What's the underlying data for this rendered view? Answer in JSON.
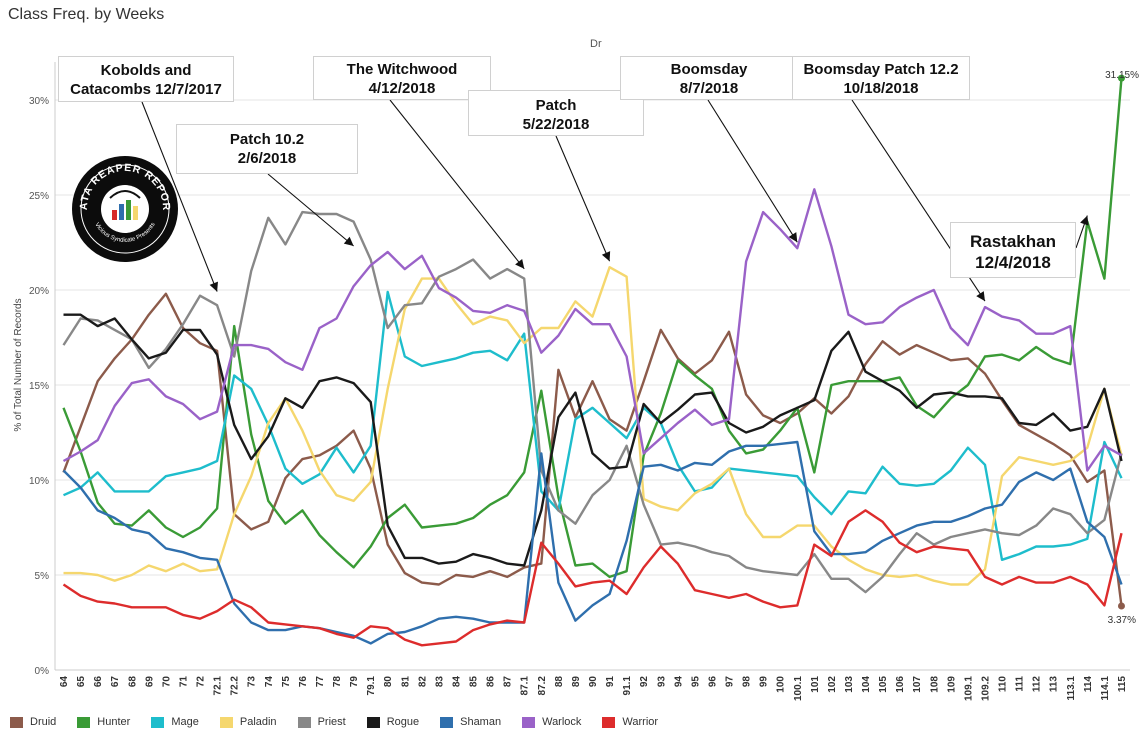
{
  "title": "Class Freq. by Weeks",
  "column_header": "Dr",
  "chart_data": {
    "type": "line",
    "ylabel": "% of Total Number of Records",
    "ylim": [
      0,
      32
    ],
    "yticks": [
      0,
      5,
      10,
      15,
      20,
      25,
      30
    ],
    "ytick_labels": [
      "0%",
      "5%",
      "10%",
      "15%",
      "20%",
      "25%",
      "30%"
    ],
    "grid": true,
    "x": [
      "64",
      "65",
      "66",
      "67",
      "68",
      "69",
      "70",
      "71",
      "72",
      "72.1",
      "72.2",
      "73",
      "74",
      "75",
      "76",
      "77",
      "78",
      "79",
      "79.1",
      "80",
      "81",
      "82",
      "83",
      "84",
      "85",
      "86",
      "87",
      "87.1",
      "87.2",
      "88",
      "89",
      "90",
      "91",
      "91.1",
      "92",
      "93",
      "94",
      "95",
      "96",
      "97",
      "98",
      "99",
      "100",
      "100.1",
      "101",
      "102",
      "103",
      "104",
      "105",
      "106",
      "107",
      "108",
      "109",
      "109.1",
      "109.2",
      "110",
      "111",
      "112",
      "113",
      "113.1",
      "114",
      "114.1",
      "115"
    ],
    "series": [
      {
        "name": "Druid",
        "color": "#8c5b4b",
        "values": [
          10.4,
          12.8,
          15.2,
          16.4,
          17.4,
          18.7,
          19.8,
          18.0,
          17.2,
          16.8,
          8.2,
          7.4,
          7.8,
          10.1,
          11.1,
          11.3,
          11.8,
          12.6,
          10.6,
          6.6,
          5.1,
          4.6,
          4.5,
          5.0,
          4.9,
          5.2,
          4.9,
          5.4,
          5.6,
          15.8,
          13.3,
          15.2,
          13.2,
          12.6,
          15.2,
          17.9,
          16.4,
          15.6,
          16.3,
          17.8,
          14.5,
          13.4,
          13.0,
          13.5,
          14.3,
          13.5,
          14.4,
          16.1,
          17.3,
          16.6,
          17.1,
          16.7,
          16.3,
          16.4,
          15.6,
          14.2,
          12.9,
          12.4,
          11.9,
          11.3,
          9.9,
          10.5,
          3.37
        ]
      },
      {
        "name": "Hunter",
        "color": "#3a9b36",
        "values": [
          13.8,
          11.5,
          8.8,
          7.7,
          7.6,
          8.4,
          7.5,
          7.0,
          7.5,
          8.5,
          18.1,
          12.4,
          8.9,
          7.7,
          8.4,
          7.1,
          6.2,
          5.4,
          6.5,
          8.0,
          8.7,
          7.5,
          7.6,
          7.7,
          8.0,
          8.7,
          9.2,
          10.4,
          14.7,
          9.1,
          5.5,
          5.6,
          4.9,
          5.2,
          11.3,
          13.5,
          16.3,
          15.5,
          14.8,
          12.6,
          11.4,
          11.6,
          12.6,
          13.8,
          10.4,
          15.0,
          15.2,
          15.2,
          15.2,
          15.4,
          13.9,
          13.3,
          14.3,
          15.0,
          16.5,
          16.6,
          16.3,
          17.0,
          16.4,
          16.1,
          23.6,
          20.6,
          31.15
        ]
      },
      {
        "name": "Mage",
        "color": "#1ebdcc",
        "values": [
          9.2,
          9.6,
          10.4,
          9.4,
          9.4,
          9.4,
          10.2,
          10.4,
          10.6,
          11.0,
          15.5,
          14.8,
          12.9,
          10.6,
          9.8,
          10.3,
          11.7,
          10.4,
          11.8,
          19.9,
          16.5,
          16.0,
          16.2,
          16.4,
          16.7,
          16.8,
          16.3,
          17.7,
          9.4,
          8.4,
          13.2,
          13.8,
          13.0,
          12.2,
          13.8,
          13.0,
          10.8,
          9.4,
          9.6,
          10.6,
          10.5,
          10.4,
          10.3,
          10.2,
          9.1,
          8.2,
          9.4,
          9.3,
          10.7,
          9.8,
          9.7,
          9.8,
          10.5,
          11.7,
          10.8,
          5.8,
          6.1,
          6.5,
          6.5,
          6.6,
          6.9,
          12.0,
          10.1
        ]
      },
      {
        "name": "Paladin",
        "color": "#f5d76e",
        "values": [
          5.1,
          5.1,
          5.0,
          4.7,
          5.0,
          5.5,
          5.2,
          5.6,
          5.2,
          5.3,
          8.2,
          10.2,
          13.0,
          14.3,
          12.6,
          10.5,
          9.2,
          8.9,
          9.9,
          14.8,
          19.0,
          20.6,
          20.6,
          19.3,
          18.2,
          18.6,
          18.4,
          17.2,
          18.0,
          18.0,
          19.4,
          18.6,
          21.2,
          20.7,
          9.0,
          8.6,
          8.4,
          9.3,
          9.8,
          10.6,
          8.2,
          7.0,
          7.0,
          7.6,
          7.6,
          6.5,
          5.8,
          5.3,
          5.0,
          4.9,
          5.0,
          4.7,
          4.5,
          4.5,
          5.3,
          10.2,
          11.2,
          11.0,
          10.8,
          11.0,
          11.7,
          14.8,
          11.3
        ]
      },
      {
        "name": "Priest",
        "color": "#888888",
        "values": [
          17.1,
          18.5,
          18.4,
          17.9,
          17.4,
          15.9,
          16.9,
          18.2,
          19.7,
          19.2,
          16.5,
          21.0,
          23.8,
          22.4,
          24.1,
          24.0,
          24.0,
          23.6,
          21.6,
          18.0,
          19.2,
          19.3,
          20.7,
          21.1,
          21.6,
          20.6,
          21.1,
          20.6,
          10.5,
          8.4,
          7.7,
          9.2,
          10.0,
          11.8,
          8.7,
          6.6,
          6.7,
          6.5,
          6.2,
          6.0,
          5.4,
          5.2,
          5.1,
          5.0,
          6.1,
          4.8,
          4.8,
          4.1,
          4.9,
          6.1,
          7.2,
          6.6,
          7.0,
          7.2,
          7.4,
          7.2,
          7.1,
          7.6,
          8.5,
          8.2,
          7.2,
          7.9,
          11.4
        ]
      },
      {
        "name": "Rogue",
        "color": "#1a1a1a",
        "values": [
          18.7,
          18.7,
          18.1,
          18.5,
          17.4,
          16.4,
          16.7,
          17.9,
          17.9,
          16.6,
          12.9,
          11.1,
          12.3,
          14.3,
          13.8,
          15.2,
          15.4,
          15.1,
          14.1,
          7.6,
          5.9,
          5.9,
          5.6,
          5.7,
          6.1,
          5.9,
          5.6,
          5.5,
          8.4,
          13.3,
          14.6,
          11.4,
          10.6,
          10.7,
          14.0,
          13.0,
          13.7,
          14.5,
          14.6,
          13.0,
          12.5,
          12.8,
          13.4,
          13.8,
          14.2,
          16.8,
          17.8,
          15.7,
          15.2,
          14.7,
          13.8,
          14.5,
          14.6,
          14.4,
          14.4,
          14.3,
          13.0,
          12.9,
          13.5,
          12.6,
          12.8,
          14.8,
          11.0
        ]
      },
      {
        "name": "Shaman",
        "color": "#2f6fad",
        "values": [
          10.5,
          9.6,
          8.4,
          8.0,
          7.4,
          7.2,
          6.4,
          6.2,
          5.9,
          5.8,
          3.5,
          2.5,
          2.1,
          2.1,
          2.3,
          2.2,
          2.0,
          1.8,
          1.4,
          1.9,
          2.0,
          2.3,
          2.7,
          2.8,
          2.7,
          2.5,
          2.5,
          2.5,
          11.4,
          4.6,
          2.6,
          3.4,
          4.0,
          6.8,
          10.7,
          10.8,
          10.5,
          10.9,
          10.8,
          11.5,
          11.8,
          11.8,
          11.9,
          12.0,
          7.3,
          6.1,
          6.1,
          6.2,
          6.8,
          7.2,
          7.6,
          7.8,
          7.8,
          8.1,
          8.5,
          8.7,
          9.9,
          10.4,
          10.0,
          10.6,
          7.8,
          7.0,
          4.5
        ]
      },
      {
        "name": "Warlock",
        "color": "#9a62c8",
        "values": [
          11.0,
          11.5,
          12.1,
          13.9,
          15.1,
          15.3,
          14.4,
          14.0,
          13.2,
          13.6,
          17.1,
          17.1,
          16.9,
          16.2,
          15.8,
          18.0,
          18.5,
          20.2,
          21.3,
          22.0,
          21.1,
          21.8,
          20.1,
          19.6,
          18.9,
          18.8,
          19.2,
          18.9,
          16.7,
          17.6,
          19.0,
          18.2,
          18.2,
          16.5,
          11.4,
          12.2,
          13.0,
          13.7,
          12.9,
          13.2,
          21.5,
          24.1,
          23.2,
          22.2,
          25.3,
          22.3,
          18.7,
          18.2,
          18.3,
          19.1,
          19.6,
          20.0,
          18.0,
          17.1,
          19.1,
          18.6,
          18.4,
          17.7,
          17.7,
          18.1,
          10.5,
          11.8,
          11.3
        ]
      },
      {
        "name": "Warrior",
        "color": "#dd2c2c",
        "values": [
          4.5,
          3.9,
          3.6,
          3.5,
          3.3,
          3.3,
          3.3,
          2.9,
          2.7,
          3.1,
          3.7,
          3.3,
          2.5,
          2.4,
          2.3,
          2.2,
          1.9,
          1.7,
          2.3,
          2.2,
          1.6,
          1.3,
          1.4,
          1.5,
          2.1,
          2.4,
          2.6,
          2.5,
          6.7,
          5.6,
          4.4,
          4.6,
          4.7,
          4.0,
          5.4,
          6.5,
          5.6,
          4.2,
          4.0,
          3.8,
          4.0,
          3.6,
          3.3,
          3.4,
          6.6,
          6.0,
          7.8,
          8.4,
          7.8,
          6.7,
          6.2,
          6.5,
          6.4,
          6.3,
          4.9,
          4.5,
          4.9,
          4.6,
          4.6,
          4.9,
          4.5,
          3.4,
          7.2
        ]
      }
    ],
    "data_labels": {
      "hunter_last": "31.15%",
      "druid_last": "3.37%"
    },
    "annotations": [
      {
        "text": "Kobolds and\nCatacombs 12/7/2017",
        "target_x": "72.1",
        "target_y": 19.6
      },
      {
        "text": "Patch 10.2\n2/6/2018",
        "target_x": "79",
        "target_y": 22.0
      },
      {
        "text": "The Witchwood\n4/12/2018",
        "target_x": "87.1",
        "target_y": 20.8
      },
      {
        "text": "Patch\n5/22/2018",
        "target_x": "91",
        "target_y": 21.2
      },
      {
        "text": "Boomsday\n8/7/2018",
        "target_x": "100.1",
        "target_y": 22.2
      },
      {
        "text": "Boomsday Patch 12.2\n10/18/2018",
        "target_x": "109.2",
        "target_y": 19.1
      },
      {
        "text": "Rastakhan\n12/4/2018",
        "target_x": "114",
        "target_y": 23.6
      }
    ]
  },
  "logo": {
    "main_text": "DATA REAPER REPORT",
    "sub_text": "Vicious Syndicate Presents"
  }
}
